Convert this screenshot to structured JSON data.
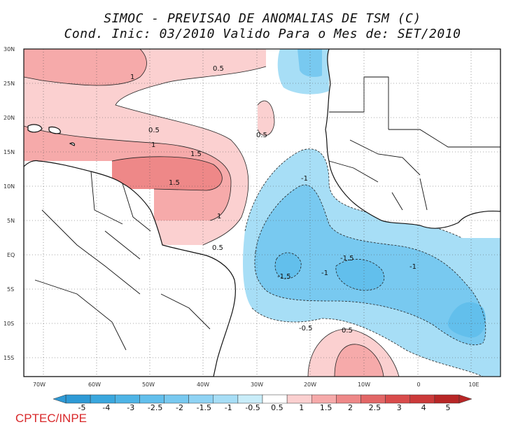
{
  "title": {
    "line1": "SIMOC - PREVISAO DE ANOMALIAS DE TSM (C)",
    "line2": "Cond. Inic: 03/2010   Valido Para o Mes de: SET/2010"
  },
  "lat_labels": [
    "30N",
    "25N",
    "20N",
    "15N",
    "10N",
    "5N",
    "EQ",
    "5S",
    "10S",
    "15S"
  ],
  "lon_labels": [
    "70W",
    "60W",
    "50W",
    "40W",
    "30W",
    "20W",
    "10W",
    "0",
    "10E"
  ],
  "contour_labels": [
    "1",
    "0.5",
    "0.5",
    "0.5",
    "1",
    "1.5",
    "1.5",
    "1",
    "0.5",
    "-1",
    "-1.5",
    "-1.5",
    "-1",
    "-1",
    "-0.5",
    "0.5"
  ],
  "colorbar": {
    "ticks": [
      "-5",
      "-4",
      "-3",
      "-2.5",
      "-2",
      "-1.5",
      "-1",
      "-0.5",
      "0.5",
      "1",
      "1.5",
      "2",
      "2.5",
      "3",
      "4",
      "5"
    ],
    "colors": [
      "#2e9ad6",
      "#3aa7de",
      "#4eb4e6",
      "#62bfec",
      "#78c9f0",
      "#8fd3f4",
      "#a7def6",
      "#c9edf9",
      "#ffffff",
      "#fbd0d0",
      "#f6aaaa",
      "#ee8888",
      "#e26666",
      "#d94b4b",
      "#cc3a3a",
      "#b82626"
    ]
  },
  "brand": "CPTEC/INPE"
}
